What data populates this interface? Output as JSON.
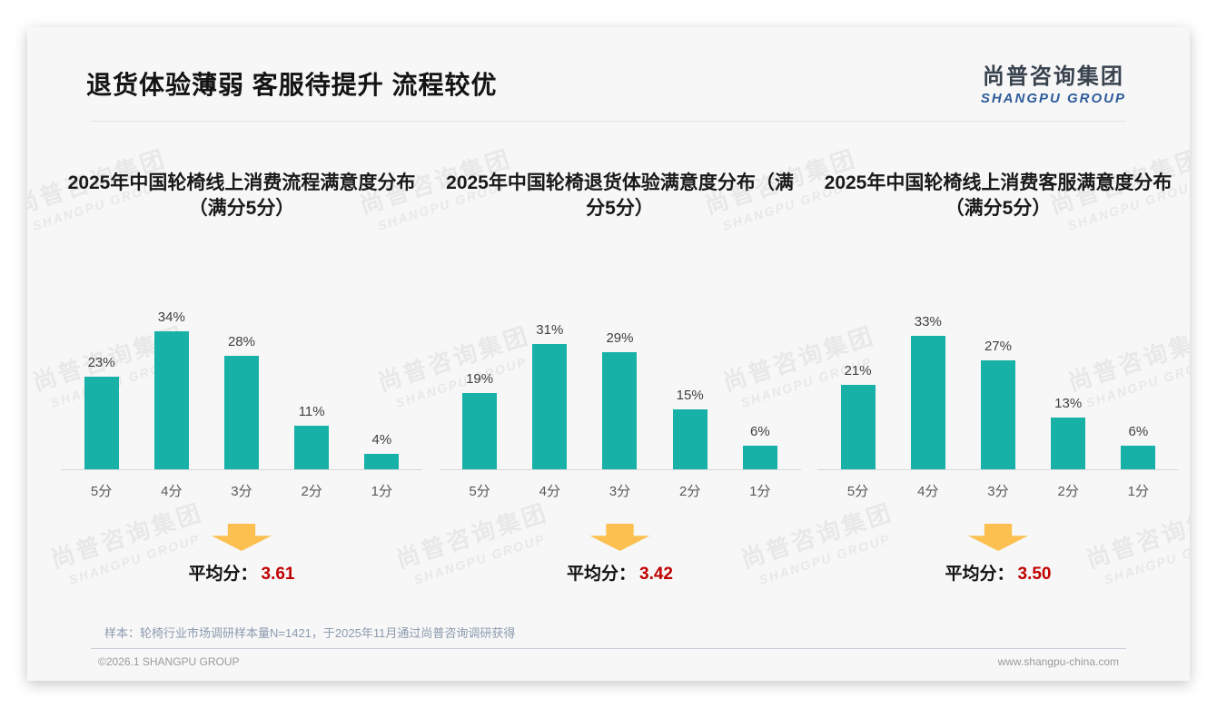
{
  "slide": {
    "title": "退货体验薄弱 客服待提升 流程较优",
    "logo": {
      "cn": "尚普咨询集团",
      "en": "SHANGPU GROUP"
    },
    "watermark": {
      "cn": "尚普咨询集团",
      "en": "SHANGPU GROUP"
    },
    "note": "样本：轮椅行业市场调研样本量N=1421，于2025年11月通过尚普咨询调研获得",
    "footer_left": "©2026.1 SHANGPU GROUP",
    "footer_right": "www.shangpu-china.com"
  },
  "colors": {
    "bar": "#17b1a7",
    "arrow": "#fbc050",
    "avg_value": "#c00000"
  },
  "chart_data": [
    {
      "type": "bar",
      "title": "2025年中国轮椅线上消费流程满意度分布（满分5分）",
      "categories": [
        "5分",
        "4分",
        "3分",
        "2分",
        "1分"
      ],
      "values": [
        23,
        34,
        28,
        11,
        4
      ],
      "unit": "%",
      "xlabel": "",
      "ylabel": "",
      "ylim": [
        0,
        40
      ],
      "grid": false,
      "legend": "none",
      "avg_label": "平均分：",
      "avg_value": "3.61"
    },
    {
      "type": "bar",
      "title": "2025年中国轮椅退货体验满意度分布（满分5分）",
      "categories": [
        "5分",
        "4分",
        "3分",
        "2分",
        "1分"
      ],
      "values": [
        19,
        31,
        29,
        15,
        6
      ],
      "unit": "%",
      "xlabel": "",
      "ylabel": "",
      "ylim": [
        0,
        40
      ],
      "grid": false,
      "legend": "none",
      "avg_label": "平均分：",
      "avg_value": "3.42"
    },
    {
      "type": "bar",
      "title": "2025年中国轮椅线上消费客服满意度分布（满分5分）",
      "categories": [
        "5分",
        "4分",
        "3分",
        "2分",
        "1分"
      ],
      "values": [
        21,
        33,
        27,
        13,
        6
      ],
      "unit": "%",
      "xlabel": "",
      "ylabel": "",
      "ylim": [
        0,
        40
      ],
      "grid": false,
      "legend": "none",
      "avg_label": "平均分：",
      "avg_value": "3.50"
    }
  ]
}
